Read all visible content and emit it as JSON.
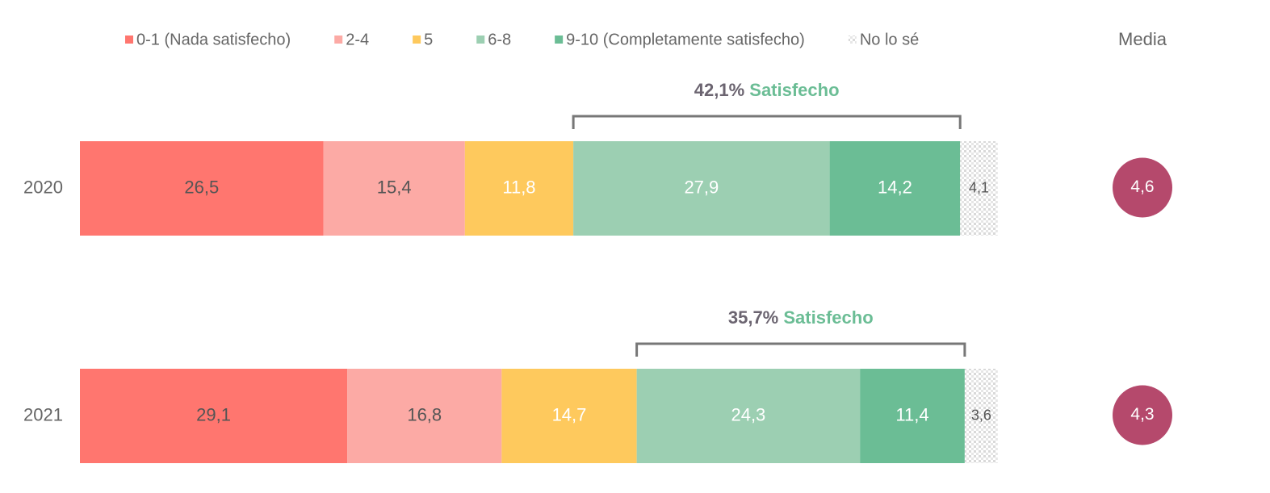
{
  "chart_data": {
    "type": "stacked-bar",
    "categories": [
      "2020",
      "2021"
    ],
    "xlim": [
      0,
      100
    ],
    "series": [
      {
        "name": "0-1 (Nada satisfecho)",
        "color": "#ff766f",
        "label_color": "#555555",
        "values": [
          26.5,
          29.1
        ],
        "value_labels": [
          "26,5",
          "29,1"
        ]
      },
      {
        "name": "2-4",
        "color": "#fcaaa5",
        "label_color": "#555555",
        "values": [
          15.4,
          16.8
        ],
        "value_labels": [
          "15,4",
          "16,8"
        ]
      },
      {
        "name": "5",
        "color": "#fec95d",
        "label_color": "#ffffff",
        "values": [
          11.8,
          14.7
        ],
        "value_labels": [
          "11,8",
          "14,7"
        ]
      },
      {
        "name": "6-8",
        "color": "#9ccfb2",
        "label_color": "#ffffff",
        "values": [
          27.9,
          24.3
        ],
        "value_labels": [
          "27,9",
          "24,3"
        ]
      },
      {
        "name": "9-10 (Completamente satisfecho)",
        "color": "#6bbd95",
        "label_color": "#ffffff",
        "values": [
          14.2,
          11.4
        ],
        "value_labels": [
          "14,2",
          "11,4"
        ]
      },
      {
        "name": "No lo sé",
        "color": "#d9d9d9",
        "label_color": "#555555",
        "pattern": true,
        "values": [
          4.1,
          3.6
        ],
        "value_labels": [
          "4,1",
          "3,6"
        ]
      }
    ],
    "annotations": [
      {
        "value": 42.1,
        "label": "42,1%",
        "text": "Satisfecho"
      },
      {
        "value": 35.7,
        "label": "35,7%",
        "text": "Satisfecho"
      }
    ],
    "media": {
      "title": "Media",
      "color": "#b5496c",
      "values": [
        4.6,
        4.3
      ],
      "value_labels": [
        "4,6",
        "4,3"
      ]
    }
  }
}
